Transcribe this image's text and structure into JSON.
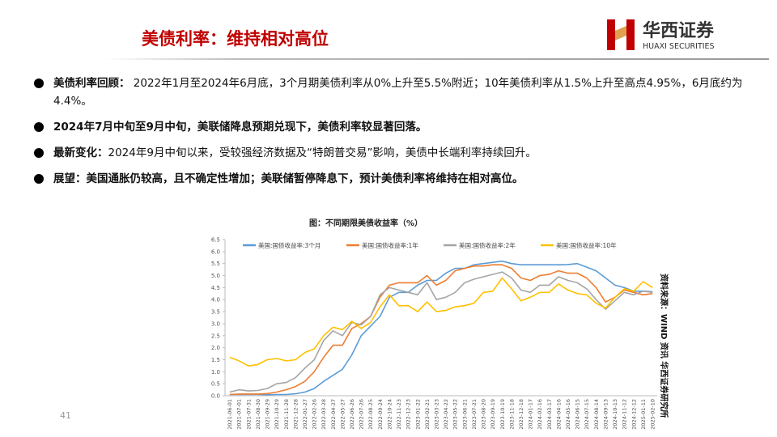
{
  "header": {
    "title": "美债利率：维持相对高位",
    "logo_name": "华西证券",
    "logo_sub": "HUAXI SECURITIES"
  },
  "bullets": [
    {
      "label": "美债利率回顾：",
      "text": " 2022年1月至2024年6月底，3个月期美债利率从0%上升至5.5%附近；10年美债利率从1.5%上升至高点4.95%，6月底约为4.4%。"
    },
    {
      "text": "2024年7月中旬至9月中旬，美联储降息预期兑现下，美债利率较显著回落。"
    },
    {
      "label": "最新变化：",
      "text": "2024年9月中旬以来，受较强经济数据及“特朗普交易”影响，美债中长端利率持续回升。"
    },
    {
      "text": "展望：美国通胀仍较高，且不确定性增加；美联储暂停降息下，预计美债利率将维持在相对高位。"
    }
  ],
  "chart_data": {
    "type": "line",
    "title": "图：不同期限美债收益率（%）",
    "source": "资料来源：WIND 资讯  华西证券研究所",
    "x": [
      "2021-06-01",
      "2021-07-01",
      "2021-07-31",
      "2021-08-30",
      "2021-09-29",
      "2021-10-29",
      "2021-11-28",
      "2021-12-28",
      "2022-01-27",
      "2022-02-26",
      "2022-03-28",
      "2022-04-27",
      "2022-05-27",
      "2022-06-26",
      "2022-07-26",
      "2022-08-25",
      "2022-09-24",
      "2022-10-24",
      "2022-11-23",
      "2022-12-23",
      "2023-01-22",
      "2023-02-21",
      "2023-03-23",
      "2023-04-22",
      "2023-05-22",
      "2023-06-21",
      "2023-07-21",
      "2023-08-20",
      "2023-09-19",
      "2023-10-19",
      "2023-11-18",
      "2023-12-18",
      "2024-01-17",
      "2024-02-16",
      "2024-03-17",
      "2024-04-16",
      "2024-05-16",
      "2024-06-15",
      "2024-07-15",
      "2024-08-14",
      "2024-09-13",
      "2024-10-13",
      "2024-11-12",
      "2024-12-12",
      "2025-01-11",
      "2025-02-10"
    ],
    "series": [
      {
        "name": "美国:国债收益率:3个月",
        "color": "#5b9bd5",
        "values": [
          0.05,
          0.05,
          0.05,
          0.05,
          0.04,
          0.05,
          0.05,
          0.08,
          0.15,
          0.3,
          0.6,
          0.85,
          1.1,
          1.7,
          2.5,
          2.9,
          3.3,
          4.1,
          4.3,
          4.3,
          4.6,
          4.8,
          4.8,
          5.1,
          5.3,
          5.3,
          5.45,
          5.5,
          5.55,
          5.6,
          5.5,
          5.45,
          5.45,
          5.45,
          5.45,
          5.45,
          5.46,
          5.5,
          5.35,
          5.2,
          4.9,
          4.6,
          4.5,
          4.35,
          4.35,
          4.33
        ]
      },
      {
        "name": "美国:国债收益率:1年",
        "color": "#ed7d31",
        "values": [
          0.05,
          0.07,
          0.07,
          0.07,
          0.09,
          0.15,
          0.25,
          0.38,
          0.6,
          1.0,
          1.6,
          2.1,
          2.1,
          2.8,
          3.0,
          3.3,
          4.1,
          4.6,
          4.7,
          4.7,
          4.7,
          5.0,
          4.6,
          4.8,
          5.2,
          5.3,
          5.4,
          5.4,
          5.45,
          5.45,
          5.3,
          4.9,
          4.8,
          5.0,
          5.05,
          5.2,
          5.1,
          5.1,
          4.9,
          4.5,
          3.9,
          4.1,
          4.4,
          4.3,
          4.2,
          4.25
        ]
      },
      {
        "name": "美国:国债收益率:2年",
        "color": "#a5a5a5",
        "values": [
          0.15,
          0.25,
          0.2,
          0.22,
          0.3,
          0.5,
          0.55,
          0.75,
          1.15,
          1.5,
          2.3,
          2.7,
          2.5,
          3.05,
          2.95,
          3.3,
          4.2,
          4.5,
          4.4,
          4.3,
          4.2,
          4.7,
          4.0,
          4.1,
          4.3,
          4.7,
          4.85,
          4.95,
          5.05,
          5.15,
          4.9,
          4.4,
          4.3,
          4.6,
          4.6,
          4.95,
          4.8,
          4.7,
          4.45,
          4.0,
          3.6,
          3.95,
          4.3,
          4.2,
          4.35,
          4.3
        ]
      },
      {
        "name": "美国:国债收益率:10年",
        "color": "#ffc000",
        "values": [
          1.6,
          1.45,
          1.24,
          1.3,
          1.5,
          1.55,
          1.45,
          1.5,
          1.8,
          1.95,
          2.5,
          2.85,
          2.75,
          3.1,
          2.8,
          3.05,
          3.7,
          4.2,
          3.75,
          3.75,
          3.5,
          3.9,
          3.5,
          3.55,
          3.7,
          3.75,
          3.85,
          4.3,
          4.35,
          4.9,
          4.45,
          3.95,
          4.1,
          4.3,
          4.3,
          4.65,
          4.4,
          4.25,
          4.2,
          3.85,
          3.65,
          4.1,
          4.45,
          4.35,
          4.75,
          4.5
        ]
      }
    ],
    "ylim": [
      0,
      6.5
    ],
    "yticks": [
      {
        "value": 0,
        "label": "0.0"
      },
      0.5,
      {
        "value": 1,
        "label": "1.0"
      },
      1.5,
      {
        "value": 2,
        "label": "2.0"
      },
      2.5,
      {
        "value": 3,
        "label": "3.0"
      },
      3.5,
      {
        "value": 4,
        "label": "4.0"
      },
      4.5,
      {
        "value": 5,
        "label": "5.0"
      },
      5.5,
      {
        "value": 6,
        "label": "6.0"
      },
      6.5
    ],
    "grid": false,
    "legend": "top"
  },
  "page_number": "41"
}
